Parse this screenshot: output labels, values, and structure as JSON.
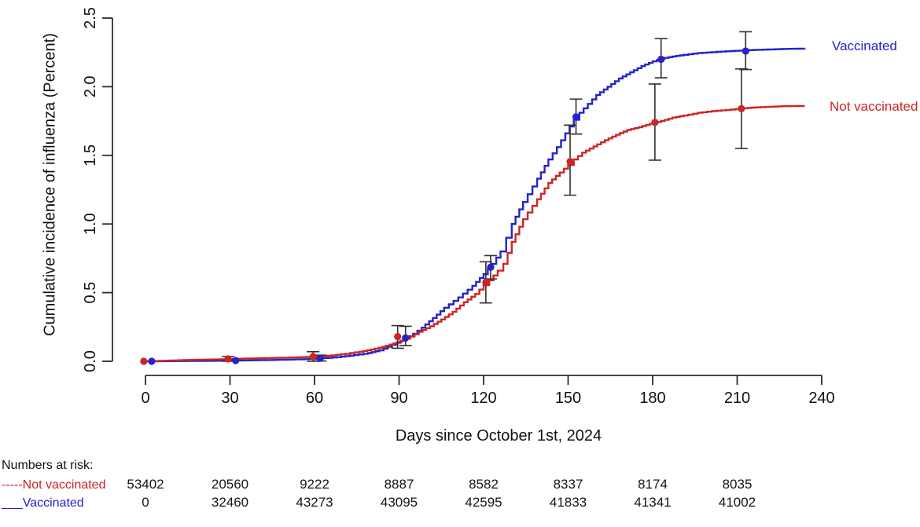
{
  "chart_data": {
    "type": "line",
    "title": "",
    "xlabel": "Days since October 1st, 2024",
    "ylabel": "Cumulative incidence of influenza (Percent)",
    "xlim": [
      0,
      240
    ],
    "ylim": [
      0.0,
      2.5
    ],
    "x_ticks": [
      0,
      30,
      60,
      90,
      120,
      150,
      180,
      210,
      240
    ],
    "y_ticks": [
      "0.0",
      "0.5",
      "1.0",
      "1.5",
      "2.0",
      "2.5"
    ],
    "grid": false,
    "legend_position": "right-of-curve-ends",
    "axis_color": "#2b2b2b",
    "errorbar_color": "#303030",
    "series": [
      {
        "name": "Vaccinated",
        "color": "#2323C8",
        "style": "solid",
        "points": [
          [
            1,
            0.0
          ],
          [
            20,
            0.003
          ],
          [
            30,
            0.005
          ],
          [
            40,
            0.008
          ],
          [
            50,
            0.012
          ],
          [
            58,
            0.016
          ],
          [
            62,
            0.022
          ],
          [
            68,
            0.03
          ],
          [
            74,
            0.045
          ],
          [
            79,
            0.06
          ],
          [
            83,
            0.08
          ],
          [
            86,
            0.105
          ],
          [
            89,
            0.135
          ],
          [
            92,
            0.165
          ],
          [
            95,
            0.2
          ],
          [
            98,
            0.245
          ],
          [
            102,
            0.315
          ],
          [
            106,
            0.39
          ],
          [
            111,
            0.465
          ],
          [
            116,
            0.55
          ],
          [
            120,
            0.635
          ],
          [
            123,
            0.71
          ],
          [
            126,
            0.8
          ],
          [
            128,
            0.9
          ],
          [
            130,
            1.0
          ],
          [
            134,
            1.16
          ],
          [
            139,
            1.33
          ],
          [
            143,
            1.47
          ],
          [
            146,
            1.56
          ],
          [
            149,
            1.66
          ],
          [
            152,
            1.76
          ],
          [
            154,
            1.81
          ],
          [
            157,
            1.875
          ],
          [
            160,
            1.94
          ],
          [
            164,
            2.0
          ],
          [
            168,
            2.06
          ],
          [
            172,
            2.105
          ],
          [
            176,
            2.15
          ],
          [
            180,
            2.185
          ],
          [
            183,
            2.205
          ],
          [
            187,
            2.22
          ],
          [
            191,
            2.232
          ],
          [
            196,
            2.245
          ],
          [
            201,
            2.252
          ],
          [
            206,
            2.258
          ],
          [
            211,
            2.263
          ],
          [
            216,
            2.268
          ],
          [
            222,
            2.272
          ],
          [
            228,
            2.276
          ],
          [
            234,
            2.278
          ]
        ],
        "markers": [
          {
            "day": 2.2,
            "y": 0.0,
            "lo": null,
            "hi": null
          },
          {
            "day": 32,
            "y": 0.005,
            "lo": null,
            "hi": null
          },
          {
            "day": 62,
            "y": 0.022,
            "lo": 0.002,
            "hi": 0.045
          },
          {
            "day": 92.3,
            "y": 0.17,
            "lo": 0.115,
            "hi": 0.255
          },
          {
            "day": 122.5,
            "y": 0.685,
            "lo": 0.6,
            "hi": 0.77
          },
          {
            "day": 152.8,
            "y": 1.78,
            "lo": 1.655,
            "hi": 1.91
          },
          {
            "day": 183,
            "y": 2.2,
            "lo": 2.065,
            "hi": 2.35
          },
          {
            "day": 213,
            "y": 2.26,
            "lo": 2.125,
            "hi": 2.4
          }
        ]
      },
      {
        "name": "Not vaccinated",
        "color": "#CC2525",
        "style": "solid",
        "points": [
          [
            0,
            0.0
          ],
          [
            8,
            0.005
          ],
          [
            15,
            0.01
          ],
          [
            25,
            0.014
          ],
          [
            30,
            0.017
          ],
          [
            38,
            0.021
          ],
          [
            46,
            0.025
          ],
          [
            54,
            0.029
          ],
          [
            60,
            0.034
          ],
          [
            66,
            0.043
          ],
          [
            71,
            0.055
          ],
          [
            76,
            0.07
          ],
          [
            80,
            0.085
          ],
          [
            84,
            0.105
          ],
          [
            88,
            0.13
          ],
          [
            91,
            0.15
          ],
          [
            94,
            0.18
          ],
          [
            97,
            0.215
          ],
          [
            101,
            0.255
          ],
          [
            105,
            0.305
          ],
          [
            109,
            0.36
          ],
          [
            113,
            0.43
          ],
          [
            117,
            0.49
          ],
          [
            120,
            0.555
          ],
          [
            122,
            0.59
          ],
          [
            125,
            0.66
          ],
          [
            127,
            0.71
          ],
          [
            130,
            0.87
          ],
          [
            134,
            1.035
          ],
          [
            139,
            1.18
          ],
          [
            143,
            1.3
          ],
          [
            147,
            1.375
          ],
          [
            150,
            1.43
          ],
          [
            152,
            1.47
          ],
          [
            155,
            1.52
          ],
          [
            159,
            1.565
          ],
          [
            163,
            1.61
          ],
          [
            167,
            1.65
          ],
          [
            171,
            1.685
          ],
          [
            175,
            1.705
          ],
          [
            179,
            1.73
          ],
          [
            183,
            1.75
          ],
          [
            187,
            1.775
          ],
          [
            191,
            1.79
          ],
          [
            196,
            1.81
          ],
          [
            201,
            1.822
          ],
          [
            206,
            1.83
          ],
          [
            211,
            1.84
          ],
          [
            215,
            1.848
          ],
          [
            220,
            1.853
          ],
          [
            226,
            1.858
          ],
          [
            234,
            1.86
          ]
        ],
        "markers": [
          {
            "day": -0.6,
            "y": 0.0,
            "lo": null,
            "hi": null
          },
          {
            "day": 29.3,
            "y": 0.017,
            "lo": 0.0,
            "hi": 0.035
          },
          {
            "day": 59.5,
            "y": 0.034,
            "lo": 0.0,
            "hi": 0.07
          },
          {
            "day": 89.5,
            "y": 0.18,
            "lo": 0.095,
            "hi": 0.26
          },
          {
            "day": 120.8,
            "y": 0.575,
            "lo": 0.425,
            "hi": 0.725
          },
          {
            "day": 150.7,
            "y": 1.455,
            "lo": 1.21,
            "hi": 1.72
          },
          {
            "day": 180.8,
            "y": 1.74,
            "lo": 1.465,
            "hi": 2.02
          },
          {
            "day": 211.5,
            "y": 1.84,
            "lo": 1.55,
            "hi": 2.13
          }
        ]
      }
    ],
    "numbers_at_risk": {
      "label": "Numbers at risk:",
      "days": [
        0,
        30,
        60,
        90,
        120,
        150,
        180,
        210
      ],
      "rows": [
        {
          "name": "Not vaccinated",
          "prefix": "-----",
          "color": "#CC2525",
          "values": [
            "53402",
            "20560",
            "9222",
            "8887",
            "8582",
            "8337",
            "8174",
            "8035"
          ]
        },
        {
          "name": "Vaccinated",
          "prefix": "___",
          "color": "#2323C8",
          "values": [
            "0",
            "32460",
            "43273",
            "43095",
            "42595",
            "41833",
            "41341",
            "41002"
          ]
        }
      ]
    }
  }
}
